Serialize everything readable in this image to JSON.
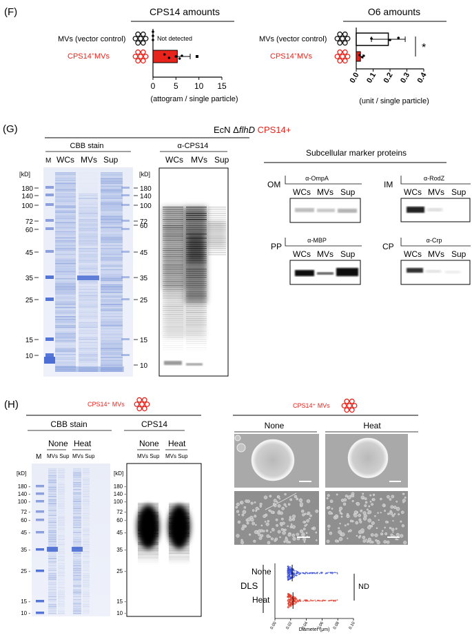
{
  "panel_f": {
    "label": "(F)",
    "mvs_vector": "MVs (vector control)",
    "mvs_cps14_pre": "CPS14",
    "mvs_cps14_sup": "+",
    "mvs_cps14_post": "MVs",
    "cps14_title": "CPS14 amounts",
    "not_detected": "Not detected",
    "cps14_ticks": [
      "0",
      "5",
      "10",
      "15"
    ],
    "cps14_xlabel": "(attogram / single particle)",
    "o6_title": "O6 amounts",
    "o6_ticks": [
      "0.0",
      "0.1",
      "0.2",
      "0.3",
      "0.4"
    ],
    "o6_xlabel": "(unit / single particle)",
    "significance": "*"
  },
  "chart_data": [
    {
      "type": "bar",
      "title": "CPS14 amounts",
      "xlabel": "(attogram / single particle)",
      "categories": [
        "MVs (vector control)",
        "CPS14+MVs"
      ],
      "values": [
        0,
        5.3
      ],
      "errors": [
        0,
        2.8
      ],
      "xlim": [
        0,
        15
      ],
      "annotation": "Not detected"
    },
    {
      "type": "bar",
      "title": "O6 amounts",
      "xlabel": "(unit / single particle)",
      "categories": [
        "MVs (vector control)",
        "CPS14+MVs"
      ],
      "values": [
        0.19,
        0.025
      ],
      "errors": [
        0.1,
        0.015
      ],
      "xlim": [
        0,
        0.4
      ],
      "significance": "*"
    },
    {
      "type": "scatter",
      "title": "DLS",
      "xlabel": "Diameter (μm)",
      "categories": [
        "None",
        "Heat"
      ],
      "x_ticks": [
        "0.00",
        "0.02",
        "0.04",
        "0.06",
        "0.08",
        "0.10"
      ],
      "xlim": [
        0,
        0.1
      ],
      "median": [
        0.022,
        0.023
      ],
      "annotation": "ND"
    }
  ],
  "panel_g": {
    "label": "(G)",
    "strain_pre": "EcN ",
    "strain_delta": "Δ",
    "strain_gene": "flhD",
    "strain_cps": " CPS14+",
    "cbb_title": "CBB stain",
    "acps14_title": "α-CPS14",
    "lane_m": "M",
    "lanes": [
      "WCs",
      "MVs",
      "Sup"
    ],
    "kd": "[kD]",
    "mw_markers": [
      "180",
      "140",
      "100",
      "72",
      "60",
      "45",
      "35",
      "25",
      "15",
      "10"
    ],
    "subcellular_title": "Subcellular marker proteins",
    "om": "OM",
    "im": "IM",
    "pp": "PP",
    "cp": "CP",
    "ompa": "α-OmpA",
    "rodz": "α-RodZ",
    "mbp": "α-MBP",
    "crp": "α-Crp"
  },
  "panel_h": {
    "label": "(H)",
    "mvs_title": "CPS14⁺ MVs",
    "cbb_title": "CBB stain",
    "cps14_title": "CPS14",
    "none": "None",
    "heat": "Heat",
    "mvs_sup": "MVs Sup",
    "lane_m": "M",
    "kd": "[kD]",
    "mw_markers": [
      "180 -",
      "140 -",
      "100 -",
      "72 -",
      "60 -",
      "45 -",
      "35 -",
      "25 -",
      "15 -",
      "10 -"
    ],
    "dls": "DLS",
    "nd": "ND",
    "dls_xlabel": "Diameter (μm)",
    "dls_ticks": [
      "0.00",
      "0.02",
      "0.04",
      "0.06",
      "0.08",
      "0.10"
    ]
  },
  "colors": {
    "accent_red": "#e8231b",
    "dls_blue": "#3a4fd8",
    "dls_red": "#e0402e",
    "gel_blue": "#4a6fc9"
  }
}
